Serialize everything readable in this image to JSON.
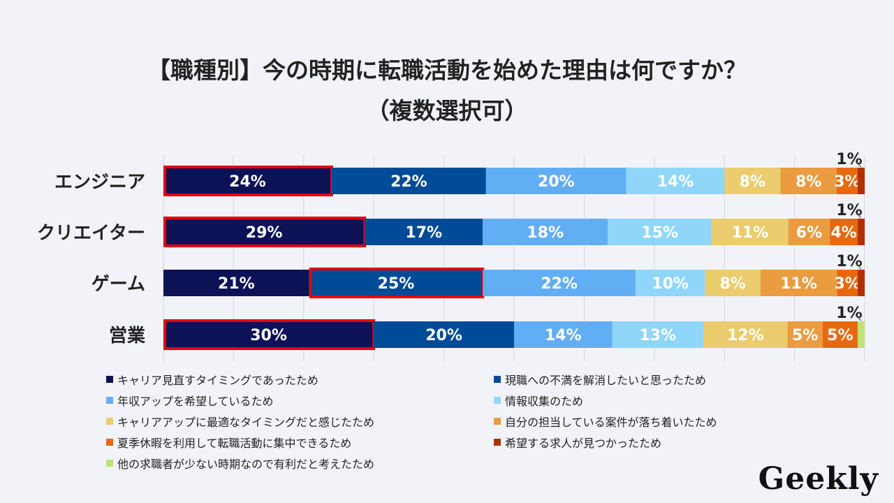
{
  "title_line1": "【職種別】今の時期に転職活動を始めた理由は何ですか？",
  "title_line2": "（複数選択可）",
  "logo": "Geekly",
  "chart_data": {
    "type": "bar",
    "orientation": "horizontal",
    "stacked": "100%",
    "title": "【職種別】今の時期に転職活動を始めた理由は何ですか？（複数選択可）",
    "categories": [
      "エンジニア",
      "クリエイター",
      "ゲーム",
      "営業"
    ],
    "series": [
      {
        "name": "キャリア見直すタイミングであったため",
        "color": "#0d1257",
        "values": [
          24,
          29,
          21,
          30
        ]
      },
      {
        "name": "現職への不満を解消したいと思ったため",
        "color": "#004b97",
        "values": [
          22,
          17,
          25,
          20
        ]
      },
      {
        "name": "年収アップを希望しているため",
        "color": "#62aef5",
        "values": [
          20,
          18,
          22,
          14
        ]
      },
      {
        "name": "情報収集のため",
        "color": "#8fd6fa",
        "values": [
          14,
          15,
          10,
          13
        ]
      },
      {
        "name": "キャリアアップに最適なタイミングだと感じたため",
        "color": "#ebcc6e",
        "values": [
          8,
          11,
          8,
          12
        ]
      },
      {
        "name": "自分の担当している案件が落ち着いたため",
        "color": "#eb9b40",
        "values": [
          8,
          6,
          11,
          5
        ]
      },
      {
        "name": "夏季休暇を利用して転職活動に集中できるため",
        "color": "#e8680f",
        "values": [
          3,
          4,
          3,
          5
        ]
      },
      {
        "name": "希望する求人が見つかったため",
        "color": "#b03000",
        "values": [
          1,
          1,
          1,
          0
        ]
      },
      {
        "name": "他の求職者が少ない時期なので有利だと考えたため",
        "color": "#bde27a",
        "values": [
          0,
          0,
          0,
          1
        ]
      }
    ],
    "highlighted": [
      {
        "category": "エンジニア",
        "series": 0
      },
      {
        "category": "クリエイター",
        "series": 0
      },
      {
        "category": "ゲーム",
        "series": 1
      },
      {
        "category": "営業",
        "series": 0
      }
    ],
    "value_suffix": "%",
    "xlim": [
      0,
      100
    ],
    "grid": true,
    "legend": "bottom"
  }
}
